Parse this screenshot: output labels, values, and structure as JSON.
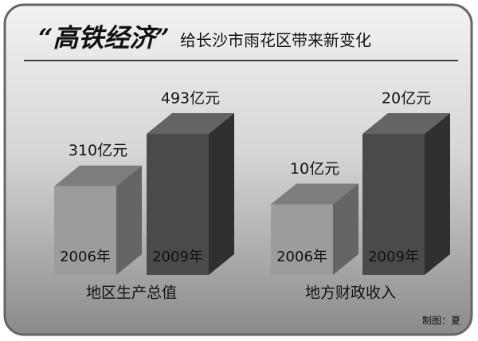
{
  "title": "“高铁经济”",
  "subtitle": "给长沙市雨花区带来新变化",
  "credit": "制图：夏",
  "chart_data": [
    {
      "type": "bar3d",
      "xlabel": "地区生产总值",
      "categories": [
        "2006年",
        "2009年"
      ],
      "values": [
        310,
        493
      ],
      "value_labels": [
        "310亿元",
        "493亿元"
      ],
      "colors": [
        "#9c9c9c",
        "#4a4a4a"
      ]
    },
    {
      "type": "bar3d",
      "xlabel": "地方财政收入",
      "categories": [
        "2006年",
        "2009年"
      ],
      "values": [
        10,
        20
      ],
      "value_labels": [
        "10亿元",
        "20亿元"
      ],
      "colors": [
        "#9c9c9c",
        "#4a4a4a"
      ]
    }
  ]
}
